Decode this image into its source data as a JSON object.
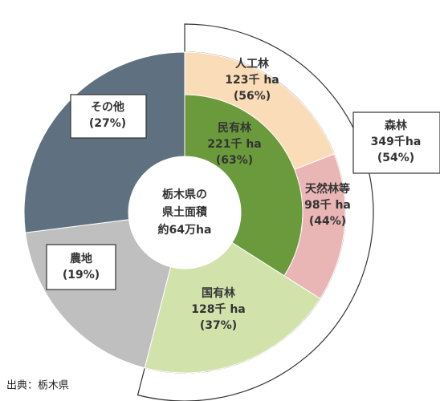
{
  "chart_data": {
    "type": "nested-donut",
    "center_label": [
      "栃木県の",
      "県土面積",
      "約64万ha"
    ],
    "segments": [
      {
        "name": "森林",
        "amount": "349千ha",
        "value": 54,
        "value_label": "(54%)",
        "color": "#ffffff"
      },
      {
        "name": "農地",
        "value": 19,
        "value_label": "(19%)",
        "color": "#bfbfbf"
      },
      {
        "name": "その他",
        "value": 27,
        "value_label": "(27%)",
        "color": "#5f7080"
      }
    ],
    "forest": [
      {
        "name": "民有林",
        "amount": "221千 ha",
        "value": 63,
        "value_label": "(63%)",
        "color": "#6b9a3c",
        "children": [
          {
            "name": "人工林",
            "amount": "123千 ha",
            "value": 56,
            "value_label": "(56%)",
            "color": "#fbdcb8"
          },
          {
            "name": "天然林等",
            "amount": "98千 ha",
            "value": 44,
            "value_label": "(44%)",
            "color": "#e9b5b5"
          }
        ]
      },
      {
        "name": "国有林",
        "amount": "128千 ha",
        "value": 37,
        "value_label": "(37%)",
        "color": "#d2e2ab"
      }
    ],
    "source": "出典：栃木県"
  }
}
